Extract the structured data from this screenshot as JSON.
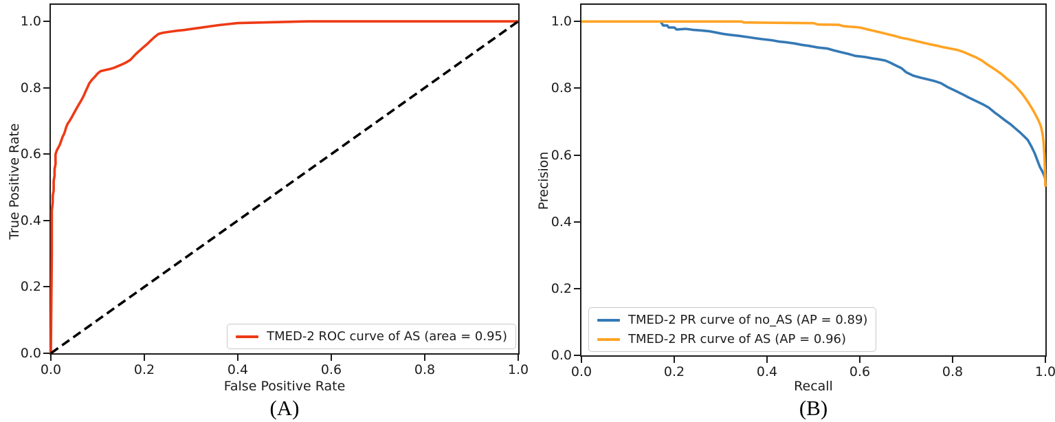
{
  "figure": {
    "background": "#ffffff",
    "captions": [
      "(A)",
      "(B)"
    ],
    "panels": [
      {
        "x_ticks": [
          "0.0",
          "0.2",
          "0.4",
          "0.6",
          "0.8",
          "1.0"
        ],
        "y_ticks": [
          "0.0",
          "0.2",
          "0.4",
          "0.6",
          "0.8",
          "1.0"
        ]
      },
      {
        "x_ticks": [
          "0.0",
          "0.2",
          "0.4",
          "0.6",
          "0.8",
          "1.0"
        ],
        "y_ticks": [
          "0.0",
          "0.2",
          "0.4",
          "0.6",
          "0.8",
          "1.0"
        ]
      }
    ]
  },
  "chart_data": [
    {
      "type": "line",
      "xlabel": "False Positive Rate",
      "ylabel": "True Positive Rate",
      "xlim": [
        0,
        1
      ],
      "ylim": [
        0,
        1.05
      ],
      "grid": false,
      "legend_position": "lower right",
      "series": [
        {
          "id": "roc-curve-as",
          "name": "TMED-2 ROC curve of AS (area = 0.95)",
          "color": "#ee3a16",
          "style": "solid",
          "in_legend": true,
          "points": [
            [
              0,
              0
            ],
            [
              0.002,
              0.3
            ],
            [
              0.002,
              0.43
            ],
            [
              0.004,
              0.455
            ],
            [
              0.004,
              0.475
            ],
            [
              0.006,
              0.49
            ],
            [
              0.006,
              0.52
            ],
            [
              0.008,
              0.535
            ],
            [
              0.008,
              0.555
            ],
            [
              0.01,
              0.57
            ],
            [
              0.01,
              0.6
            ],
            [
              0.013,
              0.612
            ],
            [
              0.016,
              0.62
            ],
            [
              0.019,
              0.628
            ],
            [
              0.022,
              0.64
            ],
            [
              0.025,
              0.652
            ],
            [
              0.028,
              0.66
            ],
            [
              0.03,
              0.668
            ],
            [
              0.033,
              0.682
            ],
            [
              0.036,
              0.692
            ],
            [
              0.04,
              0.7
            ],
            [
              0.045,
              0.712
            ],
            [
              0.05,
              0.725
            ],
            [
              0.055,
              0.738
            ],
            [
              0.06,
              0.75
            ],
            [
              0.065,
              0.762
            ],
            [
              0.07,
              0.775
            ],
            [
              0.074,
              0.788
            ],
            [
              0.078,
              0.8
            ],
            [
              0.082,
              0.813
            ],
            [
              0.088,
              0.824
            ],
            [
              0.094,
              0.833
            ],
            [
              0.1,
              0.843
            ],
            [
              0.106,
              0.85
            ],
            [
              0.115,
              0.853
            ],
            [
              0.125,
              0.856
            ],
            [
              0.135,
              0.86
            ],
            [
              0.145,
              0.866
            ],
            [
              0.155,
              0.872
            ],
            [
              0.163,
              0.878
            ],
            [
              0.17,
              0.884
            ],
            [
              0.176,
              0.893
            ],
            [
              0.182,
              0.902
            ],
            [
              0.19,
              0.912
            ],
            [
              0.198,
              0.922
            ],
            [
              0.207,
              0.933
            ],
            [
              0.215,
              0.944
            ],
            [
              0.222,
              0.953
            ],
            [
              0.23,
              0.962
            ],
            [
              0.24,
              0.966
            ],
            [
              0.255,
              0.969
            ],
            [
              0.27,
              0.972
            ],
            [
              0.285,
              0.974
            ],
            [
              0.3,
              0.977
            ],
            [
              0.32,
              0.981
            ],
            [
              0.34,
              0.985
            ],
            [
              0.36,
              0.989
            ],
            [
              0.38,
              0.992
            ],
            [
              0.4,
              0.995
            ],
            [
              0.43,
              0.996
            ],
            [
              0.46,
              0.997
            ],
            [
              0.49,
              0.998
            ],
            [
              0.52,
              0.999
            ],
            [
              0.55,
              1.0
            ],
            [
              1.0,
              1.0
            ]
          ]
        },
        {
          "id": "chance-diagonal",
          "name": "chance",
          "color": "#000000",
          "style": "dashed",
          "in_legend": false,
          "points": [
            [
              0,
              0
            ],
            [
              1,
              1
            ]
          ]
        }
      ]
    },
    {
      "type": "line",
      "xlabel": "Recall",
      "ylabel": "Precision",
      "xlim": [
        0,
        1
      ],
      "ylim": [
        0,
        1.05
      ],
      "grid": false,
      "legend_position": "lower left",
      "series": [
        {
          "id": "pr-curve-no-as",
          "name": "TMED-2 PR curve of no_AS (AP = 0.89)",
          "color": "#3579b5",
          "style": "solid",
          "in_legend": true,
          "points": [
            [
              0.17,
              1.0
            ],
            [
              0.173,
              0.995
            ],
            [
              0.176,
              0.988
            ],
            [
              0.185,
              0.988
            ],
            [
              0.188,
              0.982
            ],
            [
              0.2,
              0.982
            ],
            [
              0.205,
              0.976
            ],
            [
              0.225,
              0.978
            ],
            [
              0.24,
              0.975
            ],
            [
              0.26,
              0.973
            ],
            [
              0.275,
              0.971
            ],
            [
              0.29,
              0.967
            ],
            [
              0.305,
              0.963
            ],
            [
              0.32,
              0.96
            ],
            [
              0.34,
              0.957
            ],
            [
              0.36,
              0.953
            ],
            [
              0.375,
              0.95
            ],
            [
              0.39,
              0.947
            ],
            [
              0.41,
              0.944
            ],
            [
              0.425,
              0.94
            ],
            [
              0.44,
              0.938
            ],
            [
              0.46,
              0.934
            ],
            [
              0.475,
              0.93
            ],
            [
              0.49,
              0.927
            ],
            [
              0.51,
              0.922
            ],
            [
              0.53,
              0.919
            ],
            [
              0.545,
              0.913
            ],
            [
              0.56,
              0.908
            ],
            [
              0.575,
              0.903
            ],
            [
              0.59,
              0.897
            ],
            [
              0.61,
              0.894
            ],
            [
              0.625,
              0.89
            ],
            [
              0.64,
              0.887
            ],
            [
              0.655,
              0.883
            ],
            [
              0.665,
              0.877
            ],
            [
              0.675,
              0.87
            ],
            [
              0.69,
              0.86
            ],
            [
              0.7,
              0.848
            ],
            [
              0.715,
              0.838
            ],
            [
              0.73,
              0.832
            ],
            [
              0.745,
              0.827
            ],
            [
              0.76,
              0.822
            ],
            [
              0.775,
              0.815
            ],
            [
              0.79,
              0.803
            ],
            [
              0.805,
              0.793
            ],
            [
              0.82,
              0.783
            ],
            [
              0.835,
              0.772
            ],
            [
              0.85,
              0.762
            ],
            [
              0.865,
              0.752
            ],
            [
              0.878,
              0.742
            ],
            [
              0.89,
              0.728
            ],
            [
              0.9,
              0.718
            ],
            [
              0.912,
              0.705
            ],
            [
              0.925,
              0.692
            ],
            [
              0.935,
              0.68
            ],
            [
              0.945,
              0.668
            ],
            [
              0.955,
              0.655
            ],
            [
              0.962,
              0.645
            ],
            [
              0.97,
              0.625
            ],
            [
              0.977,
              0.605
            ],
            [
              0.983,
              0.583
            ],
            [
              0.988,
              0.565
            ],
            [
              0.993,
              0.552
            ],
            [
              0.997,
              0.54
            ],
            [
              1.0,
              0.528
            ]
          ]
        },
        {
          "id": "pr-curve-as",
          "name": "TMED-2 PR curve of AS (AP = 0.96)",
          "color": "#ffa324",
          "style": "solid",
          "in_legend": true,
          "points": [
            [
              0.0,
              1.0
            ],
            [
              0.345,
              1.0
            ],
            [
              0.35,
              0.997
            ],
            [
              0.5,
              0.995
            ],
            [
              0.51,
              0.991
            ],
            [
              0.555,
              0.99
            ],
            [
              0.565,
              0.986
            ],
            [
              0.6,
              0.982
            ],
            [
              0.615,
              0.977
            ],
            [
              0.63,
              0.972
            ],
            [
              0.645,
              0.967
            ],
            [
              0.66,
              0.962
            ],
            [
              0.675,
              0.957
            ],
            [
              0.69,
              0.951
            ],
            [
              0.705,
              0.947
            ],
            [
              0.72,
              0.942
            ],
            [
              0.735,
              0.937
            ],
            [
              0.75,
              0.932
            ],
            [
              0.765,
              0.928
            ],
            [
              0.78,
              0.923
            ],
            [
              0.795,
              0.919
            ],
            [
              0.81,
              0.915
            ],
            [
              0.825,
              0.908
            ],
            [
              0.838,
              0.9
            ],
            [
              0.85,
              0.893
            ],
            [
              0.862,
              0.884
            ],
            [
              0.874,
              0.872
            ],
            [
              0.885,
              0.862
            ],
            [
              0.895,
              0.853
            ],
            [
              0.905,
              0.843
            ],
            [
              0.915,
              0.831
            ],
            [
              0.925,
              0.82
            ],
            [
              0.933,
              0.81
            ],
            [
              0.941,
              0.798
            ],
            [
              0.949,
              0.785
            ],
            [
              0.956,
              0.772
            ],
            [
              0.963,
              0.758
            ],
            [
              0.97,
              0.742
            ],
            [
              0.976,
              0.728
            ],
            [
              0.982,
              0.712
            ],
            [
              0.987,
              0.698
            ],
            [
              0.991,
              0.683
            ],
            [
              0.994,
              0.662
            ],
            [
              0.996,
              0.64
            ],
            [
              0.998,
              0.6
            ],
            [
              0.999,
              0.555
            ],
            [
              1.0,
              0.505
            ]
          ]
        }
      ]
    }
  ]
}
